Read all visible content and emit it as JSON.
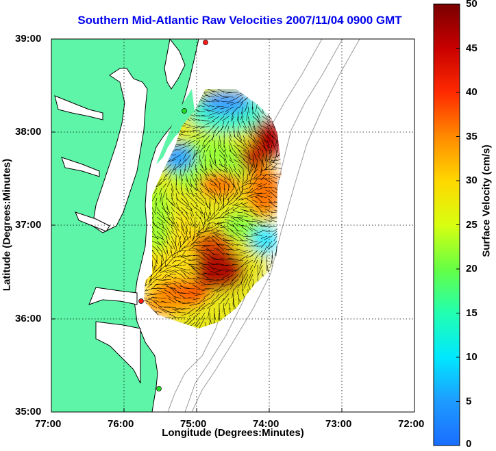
{
  "title": "Southern Mid-Atlantic Raw Velocities 2007/11/04 0900 GMT",
  "xlabel": "Longitude (Degrees:Minutes)",
  "ylabel": "Latitude (Degrees:Minutes)",
  "colorbar_label": "Surface Velocity (cm/s)",
  "x_ticks": [
    "77:00",
    "76:00",
    "75:00",
    "74:00",
    "73:00",
    "72:00"
  ],
  "y_ticks": [
    "39:00",
    "38:00",
    "37:00",
    "36:00",
    "35:00"
  ],
  "colorbar_ticks": [
    "50",
    "45",
    "40",
    "35",
    "30",
    "25",
    "20",
    "15",
    "10",
    "5",
    "0"
  ],
  "colors": {
    "land": "#5ef5a8",
    "coastline": "#000000",
    "bathymetry": "#9a9a9a",
    "title": "#0000ee",
    "station_red": "#ff1a1a",
    "station_green": "#22dd22"
  },
  "map_extent": {
    "lon_west": -77,
    "lon_east": -72,
    "lat_south": 35,
    "lat_north": 39,
    "velocity_min": 0,
    "velocity_max": 50,
    "grid": "dotted"
  }
}
